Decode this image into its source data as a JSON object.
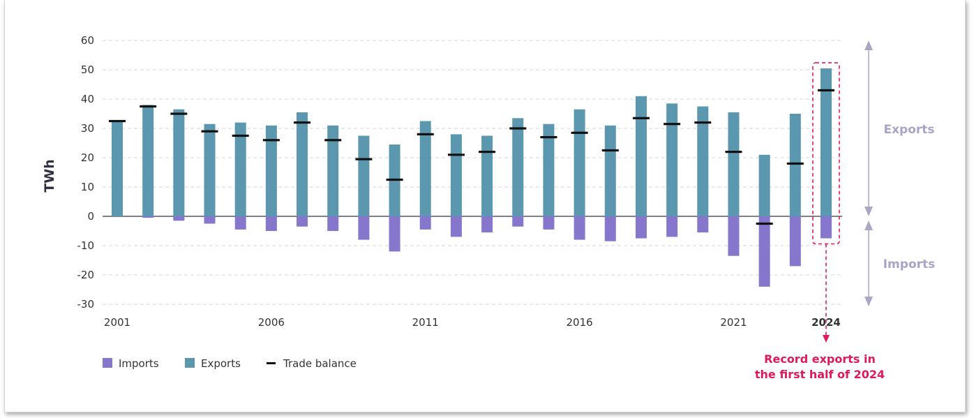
{
  "chart_data": {
    "type": "bar",
    "title": "",
    "ylabel": "TWh",
    "ylim": [
      -30,
      60
    ],
    "yticks": [
      "60",
      "50",
      "40",
      "30",
      "20",
      "10",
      "0",
      "-10",
      "-20",
      "-30"
    ],
    "categories": [
      "2001",
      "2002",
      "2003",
      "2004",
      "2005",
      "2006",
      "2007",
      "2008",
      "2009",
      "2010",
      "2011",
      "2012",
      "2013",
      "2014",
      "2015",
      "2016",
      "2017",
      "2018",
      "2019",
      "2020",
      "2021",
      "2022",
      "2023",
      "2024"
    ],
    "xtick_labels": [
      "2001",
      "2006",
      "2011",
      "2016",
      "2021",
      "2024"
    ],
    "series": [
      {
        "name": "Imports",
        "type": "bar",
        "color": "#8777cc",
        "values": [
          0,
          -0.5,
          -1.5,
          -2.5,
          -4.5,
          -5,
          -3.5,
          -5,
          -8,
          -12,
          -4.5,
          -7,
          -5.5,
          -3.5,
          -4.5,
          -8,
          -8.5,
          -7.5,
          -7,
          -5.5,
          -13.5,
          -24,
          -17,
          -7.5
        ]
      },
      {
        "name": "Exports",
        "type": "bar",
        "color": "#5b97ae",
        "values": [
          32.5,
          38,
          36.5,
          31.5,
          32,
          31,
          35.5,
          31,
          27.5,
          24.5,
          32.5,
          28,
          27.5,
          33.5,
          31.5,
          36.5,
          31,
          41,
          38.5,
          37.5,
          35.5,
          21,
          35,
          50.5
        ]
      },
      {
        "name": "Trade balance",
        "type": "marker",
        "color": "#111111",
        "values": [
          32.5,
          37.5,
          35,
          29,
          27.5,
          26,
          32,
          26,
          19.5,
          12.5,
          28,
          21,
          22,
          30,
          27,
          28.5,
          22.5,
          33.5,
          31.5,
          32,
          22,
          -2.5,
          18,
          43
        ]
      }
    ],
    "side_labels": {
      "exports": "Exports",
      "imports": "Imports"
    },
    "annotation": {
      "line1": "Record exports in",
      "line2": "the first half of 2024",
      "color": "#e0195c"
    },
    "legend_position": "bottom-left",
    "grid": true
  }
}
